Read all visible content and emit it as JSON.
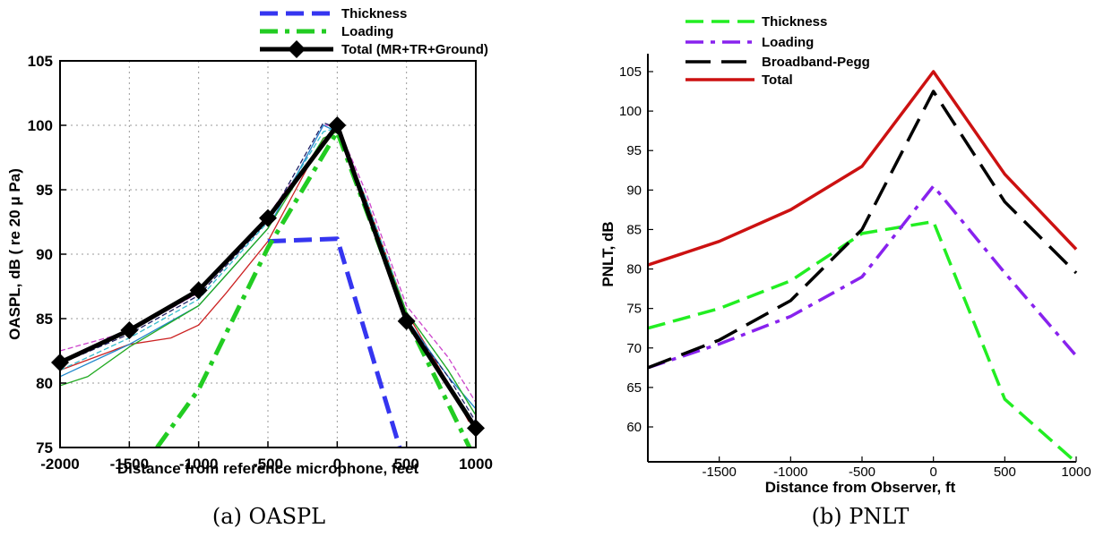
{
  "chart_data": [
    {
      "type": "line",
      "caption": "(a) OASPL",
      "xlabel": "Distance from reference microphone, feet",
      "ylabel": "OASPL, dB ( re 20 μ Pa)",
      "xlim": [
        -2000,
        1000
      ],
      "ylim": [
        75,
        105
      ],
      "xticks": [
        -2000,
        -1500,
        -1000,
        -500,
        0,
        500,
        1000
      ],
      "yticks": [
        75,
        80,
        85,
        90,
        95,
        100,
        105
      ],
      "grid": true,
      "legend_position": "top-center",
      "series": [
        {
          "name": "Thickness",
          "color": "#3535f0",
          "style": "dash",
          "x": [
            -500,
            0,
            450
          ],
          "y": [
            91.0,
            91.2,
            75.0
          ]
        },
        {
          "name": "Loading",
          "color": "#22cc22",
          "style": "dashdot",
          "x": [
            -1300,
            -1000,
            -500,
            0,
            500,
            1000
          ],
          "y": [
            75.0,
            79.5,
            90.5,
            99.5,
            85.0,
            74.0
          ]
        },
        {
          "name": "Total (MR+TR+Ground)",
          "color": "#000000",
          "style": "solid",
          "marker": "diamond",
          "x": [
            -2000,
            -1500,
            -1000,
            -500,
            0,
            500,
            1000
          ],
          "y": [
            81.6,
            84.1,
            87.2,
            92.8,
            100.0,
            84.8,
            76.5
          ]
        }
      ],
      "measured_series": [
        {
          "color": "#cc2222",
          "x": [
            -2000,
            -1500,
            -1200,
            -1000,
            -800,
            -500,
            -300,
            -100,
            0,
            200,
            500,
            800,
            950
          ],
          "y": [
            81.0,
            83.0,
            83.5,
            84.5,
            87.0,
            91.0,
            95.0,
            99.0,
            99.5,
            94.5,
            85.5,
            80.0,
            77.0
          ]
        },
        {
          "color": "#cc44cc",
          "x": [
            -2000,
            -1500,
            -1000,
            -500,
            -300,
            -100,
            0,
            200,
            500,
            800,
            1000
          ],
          "y": [
            82.5,
            84.0,
            87.0,
            93.0,
            96.0,
            100.0,
            100.0,
            95.0,
            86.0,
            82.0,
            78.5
          ]
        },
        {
          "color": "#2288cc",
          "x": [
            -2000,
            -1500,
            -1000,
            -500,
            -100,
            0,
            200,
            500,
            800,
            1000
          ],
          "y": [
            80.5,
            83.0,
            86.0,
            92.0,
            100.0,
            99.5,
            94.0,
            85.0,
            80.5,
            78.0
          ]
        },
        {
          "color": "#33bbcc",
          "x": [
            -2000,
            -1500,
            -1000,
            -500,
            -100,
            0,
            200,
            500,
            800,
            1000
          ],
          "y": [
            81.0,
            83.5,
            86.5,
            92.5,
            99.5,
            99.8,
            94.5,
            85.5,
            81.0,
            77.5
          ]
        },
        {
          "color": "#22aa22",
          "x": [
            -2000,
            -1800,
            -1500,
            -1000,
            -500,
            -100,
            0,
            200,
            500,
            800,
            1000
          ],
          "y": [
            79.8,
            80.5,
            82.8,
            86.0,
            92.0,
            99.0,
            99.5,
            94.0,
            85.5,
            81.0,
            77.5
          ]
        },
        {
          "color": "#222266",
          "x": [
            -2000,
            -1500,
            -1000,
            -500,
            -100,
            0,
            200,
            500,
            800,
            1000
          ],
          "y": [
            81.5,
            83.8,
            86.8,
            92.6,
            100.2,
            99.8,
            93.8,
            84.8,
            80.5,
            77.0
          ]
        }
      ]
    },
    {
      "type": "line",
      "caption": "(b) PNLT",
      "xlabel": "Distance from Observer, ft",
      "ylabel": "PNLT, dB",
      "xlim": [
        -2000,
        1000
      ],
      "ylim": [
        55,
        105
      ],
      "xticks": [
        -1500,
        -1000,
        -500,
        0,
        500,
        1000
      ],
      "yticks": [
        60,
        65,
        70,
        75,
        80,
        85,
        90,
        95,
        100,
        105
      ],
      "grid": false,
      "legend_position": "top-left",
      "series": [
        {
          "name": "Thickness",
          "color": "#22ee22",
          "style": "dash",
          "x": [
            -2000,
            -1500,
            -1000,
            -500,
            0,
            500,
            1000
          ],
          "y": [
            72.5,
            75.0,
            78.5,
            84.5,
            86.0,
            63.5,
            55.5
          ]
        },
        {
          "name": "Loading",
          "color": "#8822ee",
          "style": "dashdot",
          "x": [
            -2000,
            -1500,
            -1000,
            -500,
            0,
            500,
            1000
          ],
          "y": [
            67.5,
            70.5,
            74.0,
            79.0,
            90.5,
            79.5,
            69.0
          ]
        },
        {
          "name": "Broadband-Pegg",
          "color": "#000000",
          "style": "longdash",
          "x": [
            -2000,
            -1500,
            -1000,
            -500,
            0,
            500,
            1000
          ],
          "y": [
            67.5,
            71.0,
            76.0,
            85.0,
            102.5,
            88.5,
            79.5
          ]
        },
        {
          "name": "Total",
          "color": "#cc1111",
          "style": "solid",
          "x": [
            -2000,
            -1500,
            -1000,
            -500,
            0,
            500,
            1000
          ],
          "y": [
            80.5,
            83.5,
            87.5,
            93.0,
            105.0,
            92.0,
            82.5
          ]
        }
      ]
    }
  ]
}
